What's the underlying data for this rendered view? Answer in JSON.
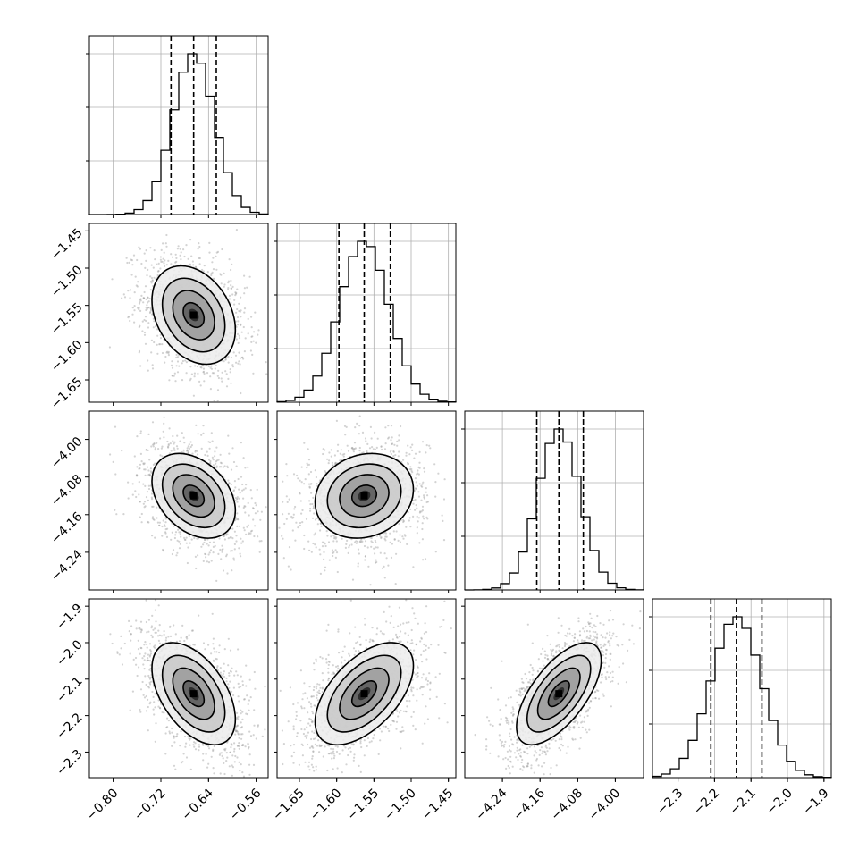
{
  "chart_data": {
    "type": "corner",
    "parameters": [
      {
        "range": [
          -0.84,
          -0.54
        ],
        "mean": -0.665,
        "sd": 0.035,
        "quantiles": [
          -0.703,
          -0.665,
          -0.627
        ],
        "ticks": [
          -0.8,
          -0.72,
          -0.64,
          -0.56
        ],
        "tick_labels": [
          "−0.80",
          "−0.72",
          "−0.64",
          "−0.56"
        ]
      },
      {
        "range": [
          -1.68,
          -1.44
        ],
        "mean": -1.563,
        "sd": 0.033,
        "quantiles": [
          -1.597,
          -1.563,
          -1.528
        ],
        "ticks": [
          -1.65,
          -1.6,
          -1.55,
          -1.5,
          -1.45
        ],
        "tick_labels": [
          "−1.65",
          "−1.60",
          "−1.55",
          "−1.50",
          "−1.45"
        ]
      },
      {
        "range": [
          -4.32,
          -3.94
        ],
        "mean": -4.12,
        "sd": 0.045,
        "quantiles": [
          -4.167,
          -4.12,
          -4.068
        ],
        "ticks": [
          -4.24,
          -4.16,
          -4.08,
          -4.0
        ],
        "tick_labels": [
          "−4.24",
          "−4.16",
          "−4.08",
          "−4.00"
        ]
      },
      {
        "range": [
          -2.37,
          -1.88
        ],
        "mean": -2.14,
        "sd": 0.07,
        "quantiles": [
          -2.21,
          -2.14,
          -2.07
        ],
        "ticks": [
          -2.3,
          -2.2,
          -2.1,
          -2.0,
          -1.9
        ],
        "tick_labels": [
          "−2.3",
          "−2.2",
          "−2.1",
          "−2.0",
          "−1.9"
        ]
      }
    ],
    "correlations": [
      [
        1.0,
        -0.3,
        -0.35,
        -0.5
      ],
      [
        -0.3,
        1.0,
        0.15,
        0.55
      ],
      [
        -0.35,
        0.15,
        1.0,
        0.65
      ],
      [
        -0.5,
        0.55,
        0.65,
        1.0
      ]
    ],
    "histogram_bins": 20,
    "contour_levels_sigma": [
      0.5,
      1.0,
      1.5,
      2.0
    ],
    "grid": true,
    "colors": {
      "line": "#000000",
      "grid": "#b0b0b0",
      "points": "#9e9e9e"
    }
  }
}
